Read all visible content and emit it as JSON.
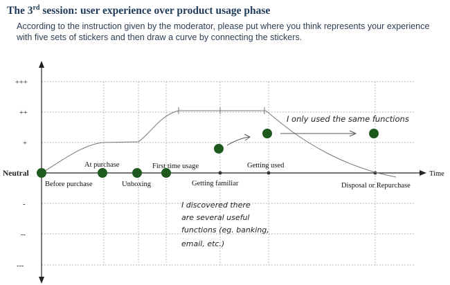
{
  "title": {
    "main": "The 3",
    "sup": "rd",
    "rest": " session: user experience over product usage phase"
  },
  "instruction": "According to the instruction given by the moderator, please put where you think represents your experience with five sets of stickers and then draw a curve by connecting the stickers.",
  "chart": {
    "y_levels": [
      "+++",
      "++",
      "+",
      "Neutral",
      "-",
      "--",
      "---"
    ],
    "x_axis_label": "Time",
    "phases_below": [
      "Before purchase",
      "Unboxing",
      "Getting familiar",
      "Disposal or Repurchase"
    ],
    "phases_above": [
      "At purchase",
      "First time usage",
      "Getting used"
    ],
    "annotation_top": "I only used the same functions",
    "annotation_bottom_lines": [
      "I discovered there",
      "are several useful",
      "functions (eg. banking,",
      "email, etc.)"
    ],
    "sticker_color": "#1e5a1e"
  }
}
